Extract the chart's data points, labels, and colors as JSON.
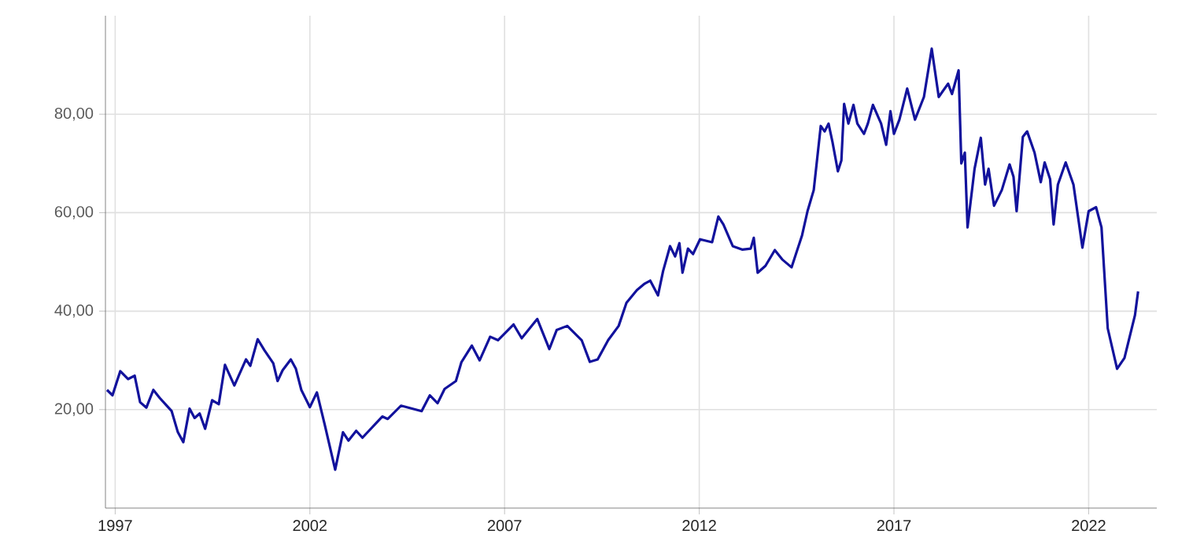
{
  "chart_data": {
    "type": "line",
    "xlim": [
      1996.75,
      2023.75
    ],
    "ylim": [
      0,
      100
    ],
    "xticks": [
      1997,
      2002,
      2007,
      2012,
      2017,
      2022
    ],
    "yticks": [
      {
        "value": 20,
        "label": "20,00"
      },
      {
        "value": 40,
        "label": "40,00"
      },
      {
        "value": 60,
        "label": "60,00"
      },
      {
        "value": 80,
        "label": "80,00"
      }
    ],
    "grid": true,
    "marker": "none",
    "line_style": "solid",
    "series": [
      {
        "color": "#12129c",
        "x": [
          1996.79,
          1996.93,
          1997.13,
          1997.33,
          1997.5,
          1997.64,
          1997.8,
          1997.98,
          1998.14,
          1998.45,
          1998.61,
          1998.75,
          1998.91,
          1999.04,
          1999.17,
          1999.31,
          1999.49,
          1999.66,
          1999.82,
          2000.06,
          2000.36,
          2000.47,
          2000.66,
          2000.83,
          2001.06,
          2001.17,
          2001.3,
          2001.51,
          2001.64,
          2001.78,
          2002.0,
          2002.18,
          2002.38,
          2002.65,
          2002.85,
          2002.99,
          2003.19,
          2003.35,
          2003.86,
          2004.0,
          2004.34,
          2004.87,
          2005.08,
          2005.28,
          2005.46,
          2005.75,
          2005.89,
          2006.16,
          2006.36,
          2006.63,
          2006.83,
          2007.23,
          2007.44,
          2007.84,
          2008.15,
          2008.34,
          2008.61,
          2008.98,
          2009.19,
          2009.39,
          2009.66,
          2009.93,
          2010.13,
          2010.4,
          2010.6,
          2010.74,
          2010.94,
          2011.07,
          2011.25,
          2011.38,
          2011.49,
          2011.57,
          2011.71,
          2011.84,
          2012.02,
          2012.33,
          2012.49,
          2012.62,
          2012.86,
          2013.1,
          2013.32,
          2013.4,
          2013.5,
          2013.7,
          2013.94,
          2014.13,
          2014.37,
          2014.64,
          2014.78,
          2014.94,
          2015.12,
          2015.22,
          2015.32,
          2015.42,
          2015.56,
          2015.65,
          2015.72,
          2015.83,
          2015.96,
          2016.06,
          2016.23,
          2016.33,
          2016.46,
          2016.67,
          2016.8,
          2016.91,
          2017.0,
          2017.14,
          2017.34,
          2017.54,
          2017.77,
          2017.97,
          2018.15,
          2018.39,
          2018.49,
          2018.66,
          2018.73,
          2018.82,
          2018.89,
          2019.07,
          2019.23,
          2019.34,
          2019.43,
          2019.57,
          2019.77,
          2019.97,
          2020.07,
          2020.15,
          2020.31,
          2020.42,
          2020.61,
          2020.77,
          2020.87,
          2021.01,
          2021.1,
          2021.21,
          2021.41,
          2021.61,
          2021.84,
          2022.0,
          2022.19,
          2022.33,
          2022.49,
          2022.73,
          2022.92,
          2023.19,
          2023.27
        ],
        "values": [
          24.0,
          22.9,
          27.8,
          26.2,
          26.9,
          21.5,
          20.4,
          24.0,
          22.4,
          19.7,
          15.4,
          13.4,
          20.2,
          18.3,
          19.2,
          16.1,
          21.9,
          21.1,
          29.1,
          24.9,
          30.2,
          28.9,
          34.3,
          32.1,
          29.4,
          25.8,
          28.0,
          30.2,
          28.3,
          24.0,
          20.5,
          23.5,
          17.0,
          7.8,
          15.4,
          13.7,
          15.7,
          14.3,
          18.6,
          18.1,
          20.8,
          19.7,
          22.9,
          21.3,
          24.2,
          25.8,
          29.6,
          33.0,
          30.0,
          34.8,
          34.1,
          37.3,
          34.5,
          38.4,
          32.3,
          36.2,
          37.0,
          34.1,
          29.7,
          30.2,
          34.1,
          37.0,
          41.7,
          44.3,
          45.6,
          46.2,
          43.2,
          48.1,
          53.2,
          51.1,
          53.8,
          47.8,
          52.7,
          51.6,
          54.6,
          54.0,
          59.2,
          57.6,
          53.2,
          52.5,
          52.7,
          54.9,
          47.8,
          49.2,
          52.4,
          50.5,
          48.9,
          55.4,
          60.3,
          64.6,
          77.6,
          76.5,
          78.1,
          74.4,
          68.4,
          70.6,
          82.1,
          78.1,
          81.9,
          78.1,
          76.0,
          78.1,
          81.9,
          78.1,
          73.8,
          80.6,
          76.0,
          78.9,
          85.2,
          78.9,
          83.5,
          93.3,
          83.5,
          86.2,
          84.1,
          88.9,
          70.0,
          72.2,
          57.0,
          68.9,
          75.2,
          65.7,
          68.9,
          61.4,
          64.6,
          69.8,
          67.3,
          60.3,
          75.4,
          76.5,
          72.2,
          66.2,
          70.2,
          66.8,
          57.6,
          65.7,
          70.2,
          65.7,
          52.9,
          60.3,
          61.1,
          57.0,
          36.5,
          28.3,
          30.5,
          39.2,
          44.0
        ]
      }
    ]
  }
}
